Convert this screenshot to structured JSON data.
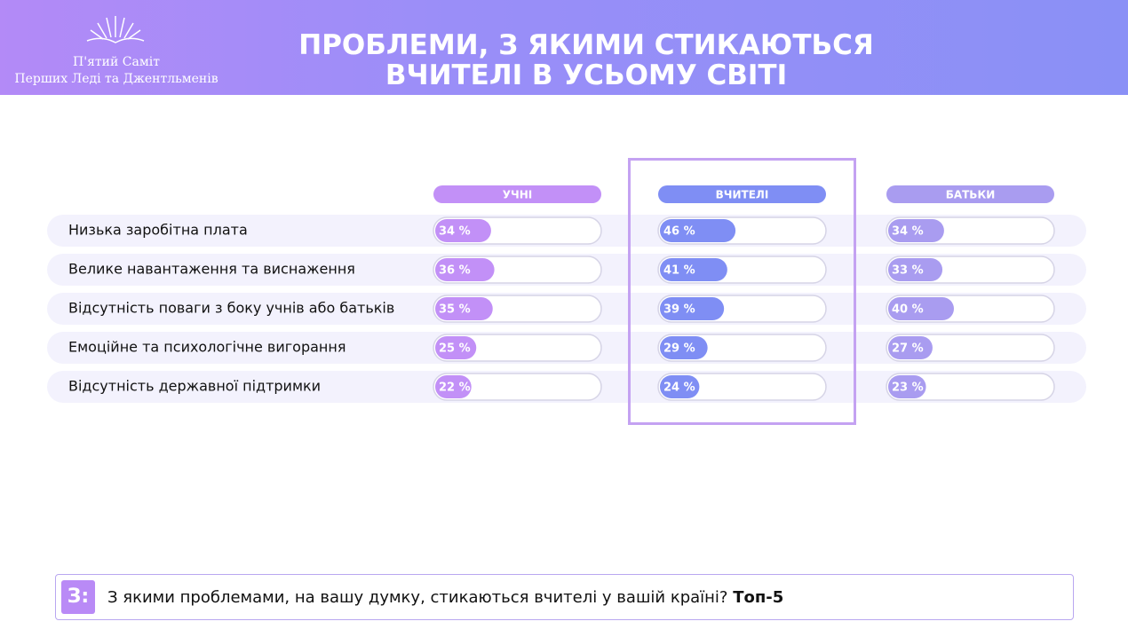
{
  "header": {
    "logo_line1": "П'ятий Саміт",
    "logo_line2": "Перших Леді та Джентльменів"
  },
  "chart_data": {
    "type": "bar",
    "title": "ПРОБЛЕМИ, З ЯКИМИ СТИКАЮТЬСЯ ВЧИТЕЛІ В УСЬОМУ СВІТІ",
    "categories": [
      "Низька заробітна плата",
      "Велике навантаження та виснаження",
      "Відсутність поваги з боку учнів або батьків",
      "Емоційне та психологічне вигорання",
      "Відсутність державної підтримки"
    ],
    "series": [
      {
        "name": "УЧНІ",
        "color": "#c290f7",
        "values": [
          34,
          36,
          35,
          25,
          22
        ],
        "value_labels": [
          "34 %",
          "36 %",
          "35 %",
          "25 %",
          "22 %"
        ]
      },
      {
        "name": "ВЧИТЕЛІ",
        "color": "#7f8ef4",
        "values": [
          46,
          41,
          39,
          29,
          24
        ],
        "value_labels": [
          "46 %",
          "41 %",
          "39 %",
          "29 %",
          "24 %"
        ]
      },
      {
        "name": "БАТЬКИ",
        "color": "#a99cf0",
        "values": [
          34,
          33,
          40,
          27,
          23
        ],
        "value_labels": [
          "34 %",
          "33 %",
          "40 %",
          "27 %",
          "23 %"
        ]
      }
    ],
    "xlim": [
      0,
      100
    ]
  },
  "question": {
    "badge": "З:",
    "text": "З якими проблемами, на вашу думку, стикаються вчителі у вашій країні?",
    "bold": "Топ-5"
  }
}
